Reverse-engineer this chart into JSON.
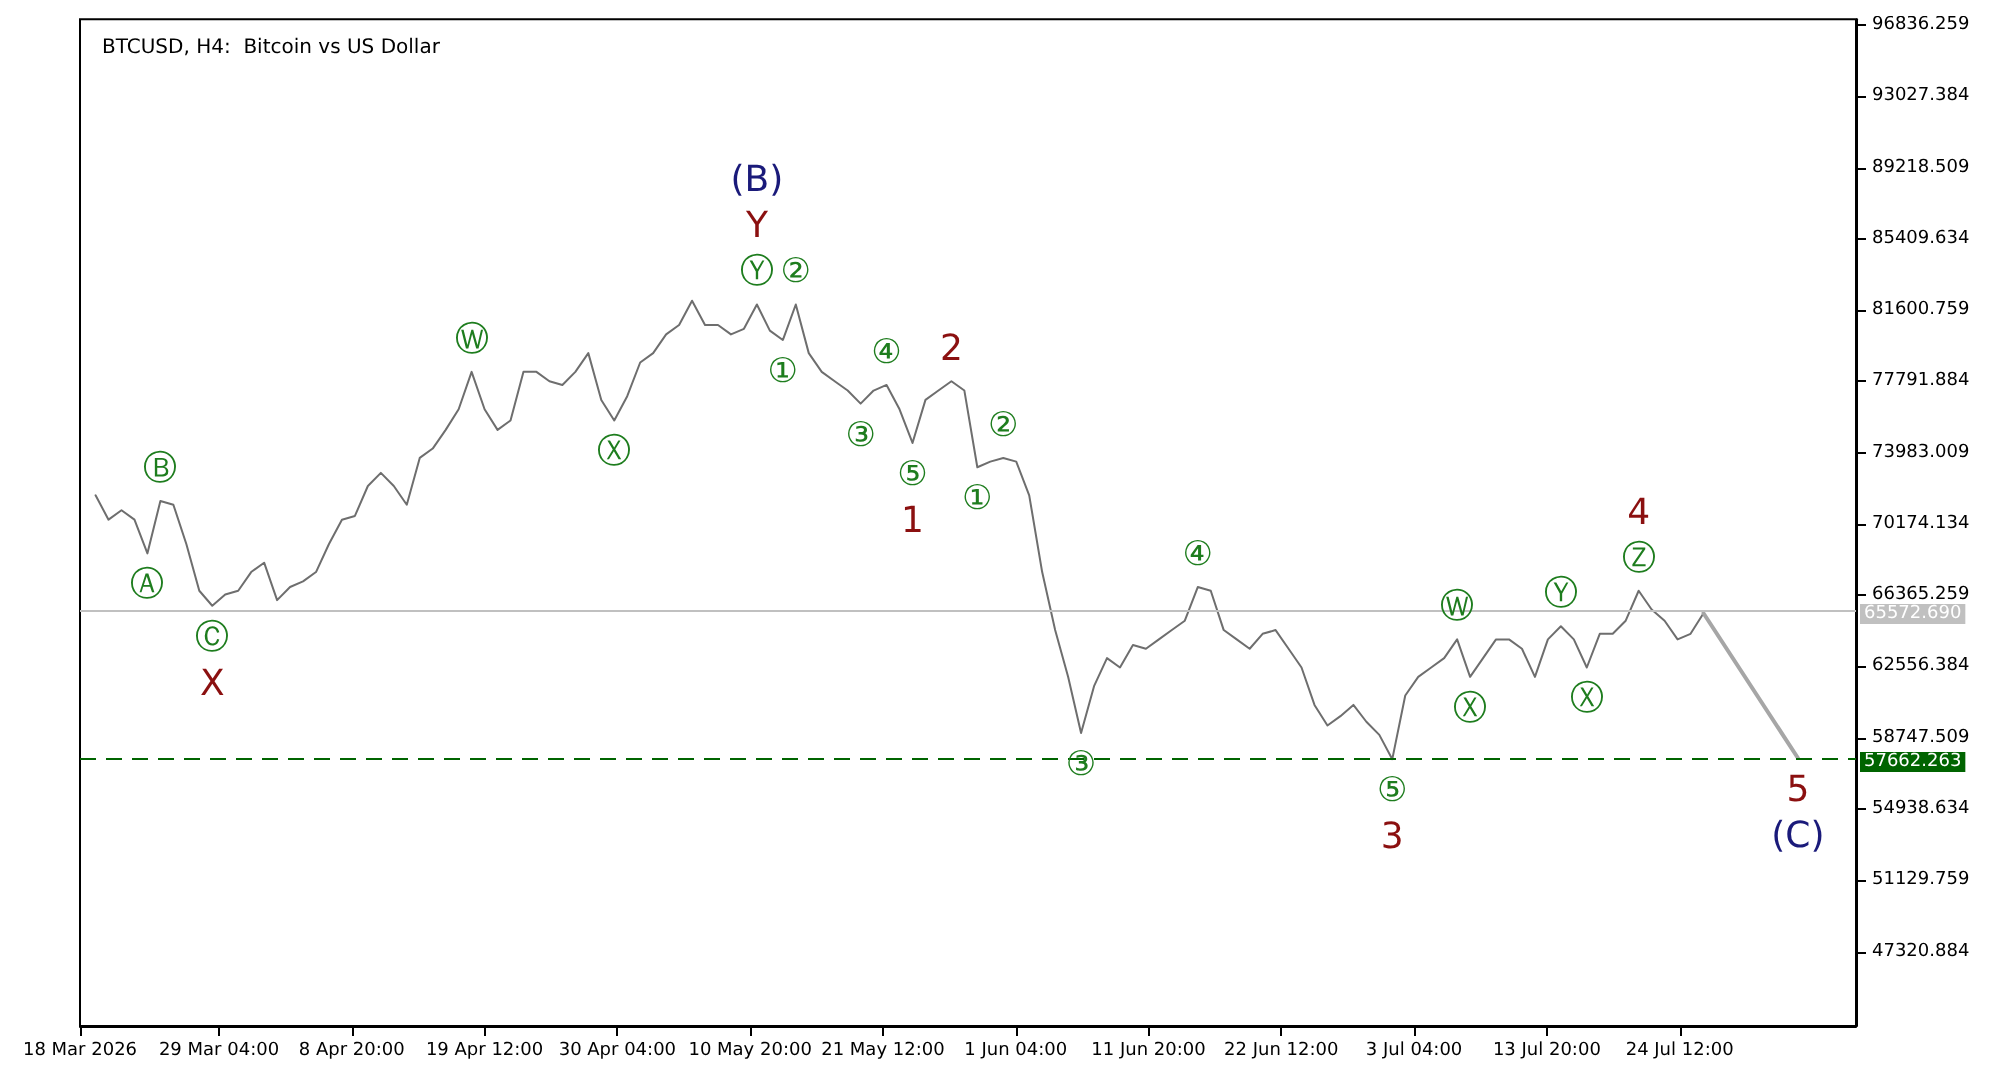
{
  "chart_data": {
    "type": "line",
    "title": "BTCUSD, H4:  Bitcoin vs US Dollar",
    "xlim": [
      "2026-03-18",
      "2026-08-07T16:00"
    ],
    "xticks": [
      {
        "value": "2026-03-18",
        "label": "18 Mar 2026"
      },
      {
        "value": "2026-03-29T04:00",
        "label": "29 Mar 04:00"
      },
      {
        "value": "2026-04-08T20:00",
        "label": "8 Apr 20:00"
      },
      {
        "value": "2026-04-19T12:00",
        "label": "19 Apr 12:00"
      },
      {
        "value": "2026-04-30T04:00",
        "label": "30 Apr 04:00"
      },
      {
        "value": "2026-05-10T20:00",
        "label": "10 May 20:00"
      },
      {
        "value": "2026-05-21T12:00",
        "label": "21 May 12:00"
      },
      {
        "value": "2026-06-01T04:00",
        "label": "1 Jun 04:00"
      },
      {
        "value": "2026-06-11T20:00",
        "label": "11 Jun 20:00"
      },
      {
        "value": "2026-06-22T12:00",
        "label": "22 Jun 12:00"
      },
      {
        "value": "2026-07-03T04:00",
        "label": "3 Jul 04:00"
      },
      {
        "value": "2026-07-13T20:00",
        "label": "13 Jul 20:00"
      },
      {
        "value": "2026-07-24T12:00",
        "label": "24 Jul 12:00"
      }
    ],
    "ylim": [
      43340,
      97140
    ],
    "yticks": [
      96836.259,
      93027.384,
      89218.509,
      85409.634,
      81600.759,
      77791.884,
      73983.009,
      70174.134,
      66365.259,
      62556.384,
      58747.509,
      54938.634,
      51129.759,
      47320.884
    ],
    "marker": "none",
    "line_style": "solid",
    "series": [
      {
        "color": "#6e6e6e",
        "x": [
          "2026-03-19T06:00",
          "2026-03-20T07:00",
          "2026-03-21T08:00",
          "2026-03-22T09:00",
          "2026-03-23T10:00",
          "2026-03-24T11:00",
          "2026-03-25T12:00",
          "2026-03-26T13:00",
          "2026-03-27T14:00",
          "2026-03-28T15:00",
          "2026-03-29T16:00",
          "2026-03-30T17:00",
          "2026-03-31T18:00",
          "2026-04-01T19:00",
          "2026-04-02T20:00",
          "2026-04-03T21:00",
          "2026-04-04T22:00",
          "2026-04-05T23:00",
          "2026-04-07T00:00",
          "2026-04-08T01:00",
          "2026-04-09T02:00",
          "2026-04-10T03:00",
          "2026-04-11T04:00",
          "2026-04-12T05:00",
          "2026-04-13T06:00",
          "2026-04-14T07:00",
          "2026-04-15T08:00",
          "2026-04-16T09:00",
          "2026-04-17T10:00",
          "2026-04-18T11:00",
          "2026-04-19T12:00",
          "2026-04-20T13:00",
          "2026-04-21T14:00",
          "2026-04-22T15:00",
          "2026-04-23T16:00",
          "2026-04-24T17:00",
          "2026-04-25T18:00",
          "2026-04-26T19:00",
          "2026-04-27T20:00",
          "2026-04-28T21:00",
          "2026-04-29T22:00",
          "2026-04-30T23:00",
          "2026-05-02T00:00",
          "2026-05-03T01:00",
          "2026-05-04T02:00",
          "2026-05-05T03:00",
          "2026-05-06T04:00",
          "2026-05-07T05:00",
          "2026-05-08T06:00",
          "2026-05-09T07:00",
          "2026-05-10T08:00",
          "2026-05-11T09:00",
          "2026-05-12T10:00",
          "2026-05-13T11:00",
          "2026-05-14T12:00",
          "2026-05-15T13:00",
          "2026-05-16T14:00",
          "2026-05-17T15:00",
          "2026-05-18T16:00",
          "2026-05-19T17:00",
          "2026-05-20T18:00",
          "2026-05-21T19:00",
          "2026-05-22T20:00",
          "2026-05-23T21:00",
          "2026-05-24T22:00",
          "2026-05-25T23:00",
          "2026-05-27T00:00",
          "2026-05-28T01:00",
          "2026-05-29T02:00",
          "2026-05-30T03:00",
          "2026-05-31T04:00",
          "2026-06-01T05:00",
          "2026-06-02T06:00",
          "2026-06-03T07:00",
          "2026-06-04T08:00",
          "2026-06-05T09:00",
          "2026-06-06T10:00",
          "2026-06-07T11:00",
          "2026-06-08T12:00",
          "2026-06-09T13:00",
          "2026-06-10T14:00",
          "2026-06-11T15:00",
          "2026-06-12T16:00",
          "2026-06-13T17:00",
          "2026-06-14T18:00",
          "2026-06-15T19:00",
          "2026-06-16T20:00",
          "2026-06-17T21:00",
          "2026-06-18T22:00",
          "2026-06-19T23:00",
          "2026-06-21T00:00",
          "2026-06-22T01:00",
          "2026-06-23T02:00",
          "2026-06-24T03:00",
          "2026-06-25T04:00",
          "2026-06-26T05:00",
          "2026-06-27T06:00",
          "2026-06-28T07:00",
          "2026-06-29T08:00",
          "2026-06-30T09:00",
          "2026-07-01T10:00",
          "2026-07-02T11:00",
          "2026-07-03T12:00",
          "2026-07-04T13:00",
          "2026-07-05T14:00",
          "2026-07-06T15:00",
          "2026-07-07T16:00",
          "2026-07-08T17:00",
          "2026-07-09T18:00",
          "2026-07-10T19:00",
          "2026-07-11T20:00",
          "2026-07-12T21:00",
          "2026-07-13T22:00",
          "2026-07-14T23:00",
          "2026-07-16T00:00",
          "2026-07-17T01:00",
          "2026-07-18T02:00",
          "2026-07-19T03:00",
          "2026-07-20T04:00",
          "2026-07-21T05:00",
          "2026-07-22T06:00",
          "2026-07-23T07:00",
          "2026-07-24T08:00",
          "2026-07-25T09:00",
          "2026-07-26T10:00"
        ],
        "values": [
          71700,
          70400,
          70900,
          70400,
          68600,
          71400,
          71200,
          69100,
          66600,
          65800,
          66400,
          66600,
          67600,
          68100,
          66100,
          66800,
          67100,
          67600,
          69100,
          70400,
          70600,
          72200,
          72900,
          72200,
          71200,
          73700,
          74200,
          75200,
          76300,
          78300,
          76300,
          75200,
          75700,
          78300,
          78300,
          77800,
          77600,
          78300,
          79300,
          76800,
          75700,
          77000,
          78800,
          79300,
          80300,
          80800,
          82100,
          80800,
          80800,
          80300,
          80600,
          81900,
          80500,
          80000,
          81900,
          79300,
          78300,
          77800,
          77300,
          76600,
          77300,
          77600,
          76300,
          74500,
          76800,
          77300,
          77800,
          77300,
          73200,
          73500,
          73700,
          73500,
          71700,
          67600,
          64500,
          62000,
          59000,
          61500,
          63000,
          62500,
          63700,
          63500,
          64000,
          64500,
          65000,
          66800,
          66600,
          64500,
          64000,
          63500,
          64300,
          64500,
          63500,
          62500,
          60500,
          59400,
          59900,
          60500,
          59600,
          58900,
          57600,
          61000,
          62000,
          62500,
          63000,
          64000,
          62000,
          63000,
          64000,
          64000,
          63500,
          62000,
          64000,
          64700,
          64000,
          62500,
          64300,
          64300,
          65000,
          66600,
          65600,
          65000,
          64000,
          64300,
          65400
        ]
      },
      {
        "color": "#a6a6a6",
        "x": [
          "2026-07-26T10:00",
          "2026-08-03T00:00"
        ],
        "values": [
          65400,
          57662.263
        ]
      }
    ],
    "ref_lines": [
      {
        "axis": "y",
        "value": 65572.69,
        "label": "65572.690",
        "color": "#c0c0c0",
        "line_style": "solid"
      },
      {
        "axis": "y",
        "value": 57662.263,
        "label": "57662.263",
        "color": "#006400",
        "line_style": "dashed"
      }
    ],
    "annotations": [
      {
        "text": "Ⓐ",
        "x": "2026-03-23T10:00",
        "y": 68600
      },
      {
        "text": "Ⓑ",
        "x": "2026-03-24T11:00",
        "y": 71400
      },
      {
        "text": "Ⓒ",
        "x": "2026-03-28T15:00",
        "y": 65800
      },
      {
        "text": "X",
        "x": "2026-03-28T15:00",
        "y": 65800
      },
      {
        "text": "Ⓦ",
        "x": "2026-04-18T11:00",
        "y": 78300
      },
      {
        "text": "Ⓧ",
        "x": "2026-04-29T22:00",
        "y": 75700
      },
      {
        "text": "Ⓨ",
        "x": "2026-05-11T09:00",
        "y": 81900
      },
      {
        "text": "Y",
        "x": "2026-05-11T09:00",
        "y": 81900
      },
      {
        "text": "(B)",
        "x": "2026-05-11T09:00",
        "y": 81900
      },
      {
        "text": "①",
        "x": "2026-05-13T11:00",
        "y": 80000
      },
      {
        "text": "②",
        "x": "2026-05-14T12:00",
        "y": 81900
      },
      {
        "text": "③",
        "x": "2026-05-19T17:00",
        "y": 76600
      },
      {
        "text": "④",
        "x": "2026-05-21T19:00",
        "y": 77600
      },
      {
        "text": "⑤",
        "x": "2026-05-23T21:00",
        "y": 74500
      },
      {
        "text": "1",
        "x": "2026-05-23T21:00",
        "y": 74500
      },
      {
        "text": "2",
        "x": "2026-05-27T00:00",
        "y": 77800
      },
      {
        "text": "①",
        "x": "2026-05-29T02:00",
        "y": 73200
      },
      {
        "text": "②",
        "x": "2026-05-31T04:00",
        "y": 73700
      },
      {
        "text": "③",
        "x": "2026-06-06T10:00",
        "y": 59000
      },
      {
        "text": "④",
        "x": "2026-06-15T19:00",
        "y": 66800
      },
      {
        "text": "⑤",
        "x": "2026-07-01T10:00",
        "y": 57600
      },
      {
        "text": "3",
        "x": "2026-07-01T10:00",
        "y": 57600
      },
      {
        "text": "Ⓦ",
        "x": "2026-07-06T15:00",
        "y": 64000
      },
      {
        "text": "Ⓧ",
        "x": "2026-07-07T16:00",
        "y": 62000
      },
      {
        "text": "Ⓨ",
        "x": "2026-07-14T23:00",
        "y": 64700
      },
      {
        "text": "Ⓧ",
        "x": "2026-07-17T01:00",
        "y": 62500
      },
      {
        "text": "Ⓩ",
        "x": "2026-07-21T05:00",
        "y": 66600
      },
      {
        "text": "4",
        "x": "2026-07-21T05:00",
        "y": 66600
      },
      {
        "text": "5",
        "x": "2026-08-03T00:00",
        "y": 57662.263
      },
      {
        "text": "(C)",
        "x": "2026-08-03T00:00",
        "y": 57662.263
      }
    ]
  }
}
